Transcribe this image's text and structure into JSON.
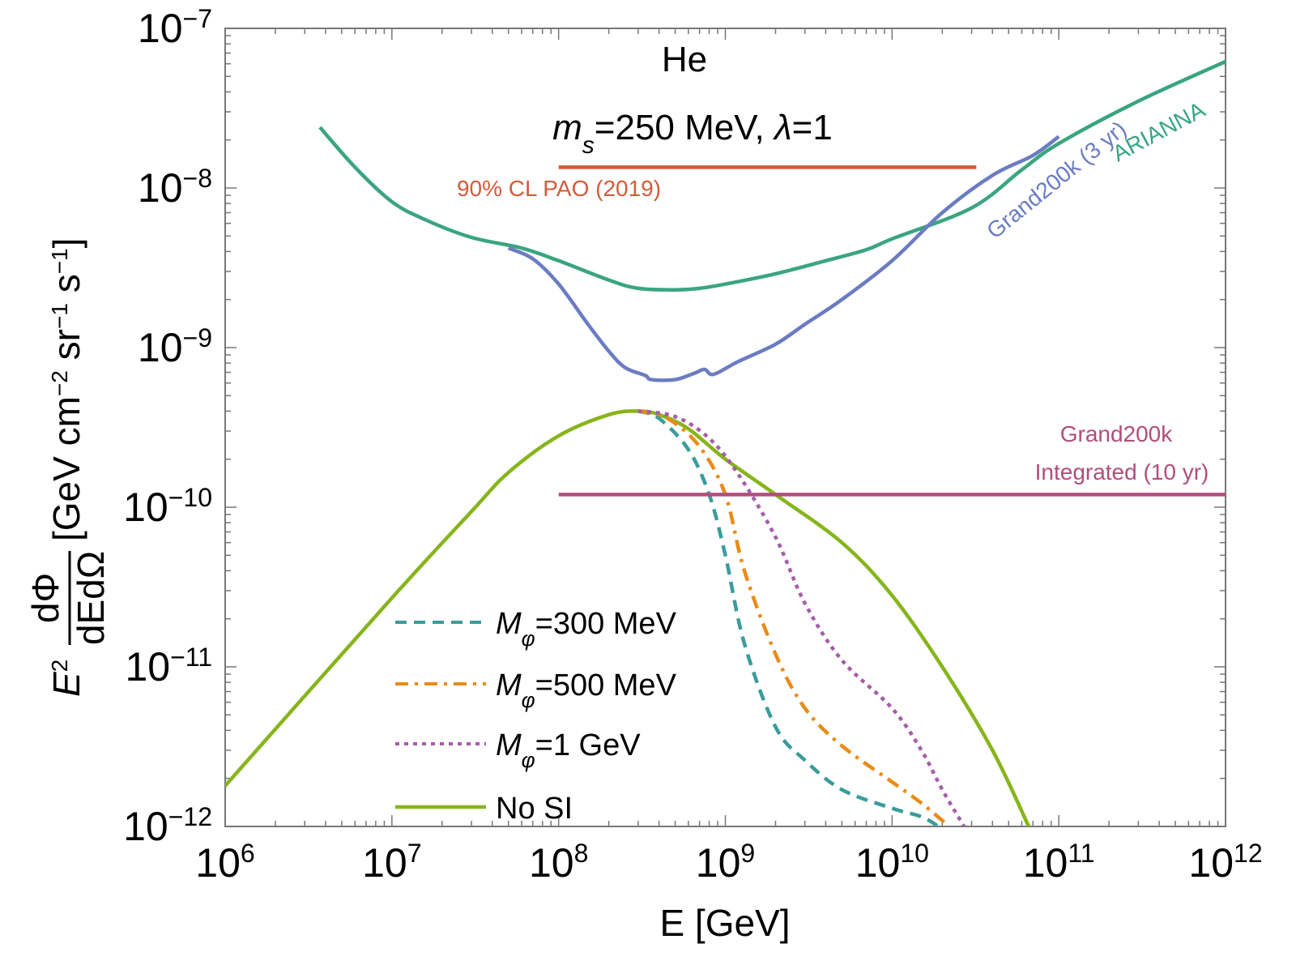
{
  "chart_data": {
    "type": "line",
    "title": "He",
    "subtitle": "m_s=250 MeV, λ=1",
    "xlabel": "E [GeV]",
    "ylabel": "E^2 dΦ/dEdΩ [GeV cm^-2 sr^-1 s^-1]",
    "xscale": "log",
    "yscale": "log",
    "xlim": [
      1000000.0,
      1000000000000.0
    ],
    "ylim": [
      1e-12,
      1e-07
    ],
    "xticks": [
      {
        "value": 1000000.0,
        "base": "10",
        "exp": "6"
      },
      {
        "value": 10000000.0,
        "base": "10",
        "exp": "7"
      },
      {
        "value": 100000000.0,
        "base": "10",
        "exp": "8"
      },
      {
        "value": 1000000000.0,
        "base": "10",
        "exp": "9"
      },
      {
        "value": 10000000000.0,
        "base": "10",
        "exp": "10"
      },
      {
        "value": 100000000000.0,
        "base": "10",
        "exp": "11"
      },
      {
        "value": 1000000000000.0,
        "base": "10",
        "exp": "12"
      }
    ],
    "yticks": [
      {
        "value": 1e-07,
        "base": "10",
        "exp": "−7"
      },
      {
        "value": 1e-08,
        "base": "10",
        "exp": "−8"
      },
      {
        "value": 1e-09,
        "base": "10",
        "exp": "−9"
      },
      {
        "value": 1e-10,
        "base": "10",
        "exp": "−10"
      },
      {
        "value": 1e-11,
        "base": "10",
        "exp": "−11"
      },
      {
        "value": 1e-12,
        "base": "10",
        "exp": "−12"
      }
    ],
    "series": [
      {
        "name": "ARIANNA",
        "color": "#3aa57e",
        "dash": "solid",
        "points": [
          [
            3700000.0,
            2.4e-08
          ],
          [
            6000000.0,
            1.35e-08
          ],
          [
            10000000.0,
            8.2e-09
          ],
          [
            16000000.0,
            6.3e-09
          ],
          [
            30000000.0,
            4.9e-09
          ],
          [
            60000000.0,
            4.2e-09
          ],
          [
            100000000.0,
            3.5e-09
          ],
          [
            200000000.0,
            2.65e-09
          ],
          [
            300000000.0,
            2.35e-09
          ],
          [
            500000000.0,
            2.3e-09
          ],
          [
            700000000.0,
            2.35e-09
          ],
          [
            1000000000.0,
            2.5e-09
          ],
          [
            2000000000.0,
            2.9e-09
          ],
          [
            4000000000.0,
            3.5e-09
          ],
          [
            7000000000.0,
            4.1e-09
          ],
          [
            10000000000.0,
            4.8e-09
          ],
          [
            30000000000.0,
            7.5e-09
          ],
          [
            60000000000.0,
            1.3e-08
          ],
          [
            100000000000.0,
            1.9e-08
          ],
          [
            300000000000.0,
            3.5e-08
          ],
          [
            1000000000000.0,
            6.2e-08
          ]
        ]
      },
      {
        "name": "Grand200k (3 yr)",
        "color": "#6b7cc2",
        "dash": "solid",
        "points": [
          [
            50000000.0,
            4.2e-09
          ],
          [
            70000000.0,
            3.6e-09
          ],
          [
            100000000.0,
            2.5e-09
          ],
          [
            150000000.0,
            1.4e-09
          ],
          [
            200000000.0,
            9.5e-10
          ],
          [
            250000000.0,
            7.5e-10
          ],
          [
            330000000.0,
            6.7e-10
          ],
          [
            360000000.0,
            6.3e-10
          ],
          [
            500000000.0,
            6.3e-10
          ],
          [
            650000000.0,
            6.9e-10
          ],
          [
            750000000.0,
            7.3e-10
          ],
          [
            850000000.0,
            6.8e-10
          ],
          [
            1200000000.0,
            8.2e-10
          ],
          [
            2000000000.0,
            1.05e-09
          ],
          [
            3000000000.0,
            1.4e-09
          ],
          [
            5000000000.0,
            2e-09
          ],
          [
            10000000000.0,
            3.5e-09
          ],
          [
            20000000000.0,
            7e-09
          ],
          [
            40000000000.0,
            1.2e-08
          ],
          [
            70000000000.0,
            1.6e-08
          ],
          [
            100000000000.0,
            2.1e-08
          ]
        ]
      },
      {
        "name": "No SI",
        "color": "#86b51b",
        "dash": "solid",
        "points": [
          [
            1000000.0,
            1.8e-12
          ],
          [
            10000000.0,
            2.7e-11
          ],
          [
            30000000.0,
            9.4e-11
          ],
          [
            50000000.0,
            1.65e-10
          ],
          [
            100000000.0,
            2.8e-10
          ],
          [
            200000000.0,
            3.8e-10
          ],
          [
            300000000.0,
            4e-10
          ],
          [
            400000000.0,
            3.8e-10
          ],
          [
            600000000.0,
            3.1e-10
          ],
          [
            1000000000.0,
            2e-10
          ],
          [
            2000000000.0,
            1.2e-10
          ],
          [
            5000000000.0,
            6e-11
          ],
          [
            10000000000.0,
            2.8e-11
          ],
          [
            20000000000.0,
            1e-11
          ],
          [
            40000000000.0,
            3e-12
          ],
          [
            66000000000.0,
            1e-12
          ]
        ]
      },
      {
        "name": "M_φ=300 MeV",
        "color": "#3a9c9c",
        "dash": "14,9",
        "points": [
          [
            300000000.0,
            4e-10
          ],
          [
            400000000.0,
            3.6e-10
          ],
          [
            600000000.0,
            2.3e-10
          ],
          [
            800000000.0,
            1.2e-10
          ],
          [
            1000000000.0,
            5e-11
          ],
          [
            1300000000.0,
            1.4e-11
          ],
          [
            2000000000.0,
            4.2e-12
          ],
          [
            3000000000.0,
            2.6e-12
          ],
          [
            5000000000.0,
            1.7e-12
          ],
          [
            10000000000.0,
            1.3e-12
          ],
          [
            15000000000.0,
            1.15e-12
          ],
          [
            19000000000.0,
            1e-12
          ]
        ]
      },
      {
        "name": "M_φ=500 MeV",
        "color": "#e88c17",
        "dash": "16,8,4,8",
        "points": [
          [
            300000000.0,
            4e-10
          ],
          [
            450000000.0,
            3.6e-10
          ],
          [
            700000000.0,
            2.4e-10
          ],
          [
            1000000000.0,
            1.2e-10
          ],
          [
            1300000000.0,
            4e-11
          ],
          [
            2000000000.0,
            1.2e-11
          ],
          [
            3000000000.0,
            5.5e-12
          ],
          [
            5000000000.0,
            3.2e-12
          ],
          [
            10000000000.0,
            1.9e-12
          ],
          [
            15000000000.0,
            1.4e-12
          ],
          [
            22000000000.0,
            1e-12
          ]
        ]
      },
      {
        "name": "M_φ=1 GeV",
        "color": "#a45ea8",
        "dash": "5,6",
        "points": [
          [
            300000000.0,
            4e-10
          ],
          [
            500000000.0,
            3.7e-10
          ],
          [
            800000000.0,
            2.7e-10
          ],
          [
            1200000000.0,
            1.6e-10
          ],
          [
            2000000000.0,
            6.5e-11
          ],
          [
            3000000000.0,
            2.5e-11
          ],
          [
            5000000000.0,
            1.1e-11
          ],
          [
            10000000000.0,
            5.5e-12
          ],
          [
            15000000000.0,
            3e-12
          ],
          [
            20000000000.0,
            1.7e-12
          ],
          [
            27000000000.0,
            1e-12
          ]
        ]
      },
      {
        "name": "90% CL PAO (2019)",
        "color": "#d35b39",
        "dash": "solid",
        "points": [
          [
            100000000.0,
            1.35e-08
          ],
          [
            32000000000.0,
            1.35e-08
          ]
        ]
      },
      {
        "name": "Grand200k Integrated (10 yr)",
        "color": "#b04e7c",
        "dash": "solid",
        "points": [
          [
            100000000.0,
            1.2e-10
          ],
          [
            1000000000000.0,
            1.2e-10
          ]
        ]
      }
    ],
    "annotations": [
      {
        "text": "90% CL PAO (2019)",
        "color": "#d35b39"
      },
      {
        "text": "Grand200k",
        "color": "#b04e7c"
      },
      {
        "text": "Integrated (10 yr)",
        "color": "#b04e7c"
      },
      {
        "text": "Grand200k (3 yr)",
        "color": "#6b7cc2"
      },
      {
        "text": "ARIANNA",
        "color": "#3aa57e"
      }
    ],
    "legend": {
      "placement": "bottom-left",
      "entries": [
        {
          "symbol": "M",
          "sub": "φ",
          "rest": "=300 MeV"
        },
        {
          "symbol": "M",
          "sub": "φ",
          "rest": "=500 MeV"
        },
        {
          "symbol": "M",
          "sub": "φ",
          "rest": "=1 GeV"
        },
        {
          "symbol": "",
          "sub": "",
          "rest": "No SI"
        }
      ]
    },
    "labels": {
      "title_he": "He",
      "sub_m": "m",
      "sub_s": "s",
      "sub_rest": "=250 MeV, ",
      "sub_lambda": "λ",
      "sub_lambda_rest": "=1",
      "ylabel_E": "E",
      "ylabel_E_exp": "2",
      "ylabel_num": "dΦ",
      "ylabel_den": "dEdΩ",
      "ylabel_units_1": "[GeV cm",
      "ylabel_units_exp1": "−2",
      "ylabel_units_2": " sr",
      "ylabel_units_exp2": "−1",
      "ylabel_units_3": " s",
      "ylabel_units_exp3": "−1",
      "ylabel_units_4": "]"
    }
  }
}
